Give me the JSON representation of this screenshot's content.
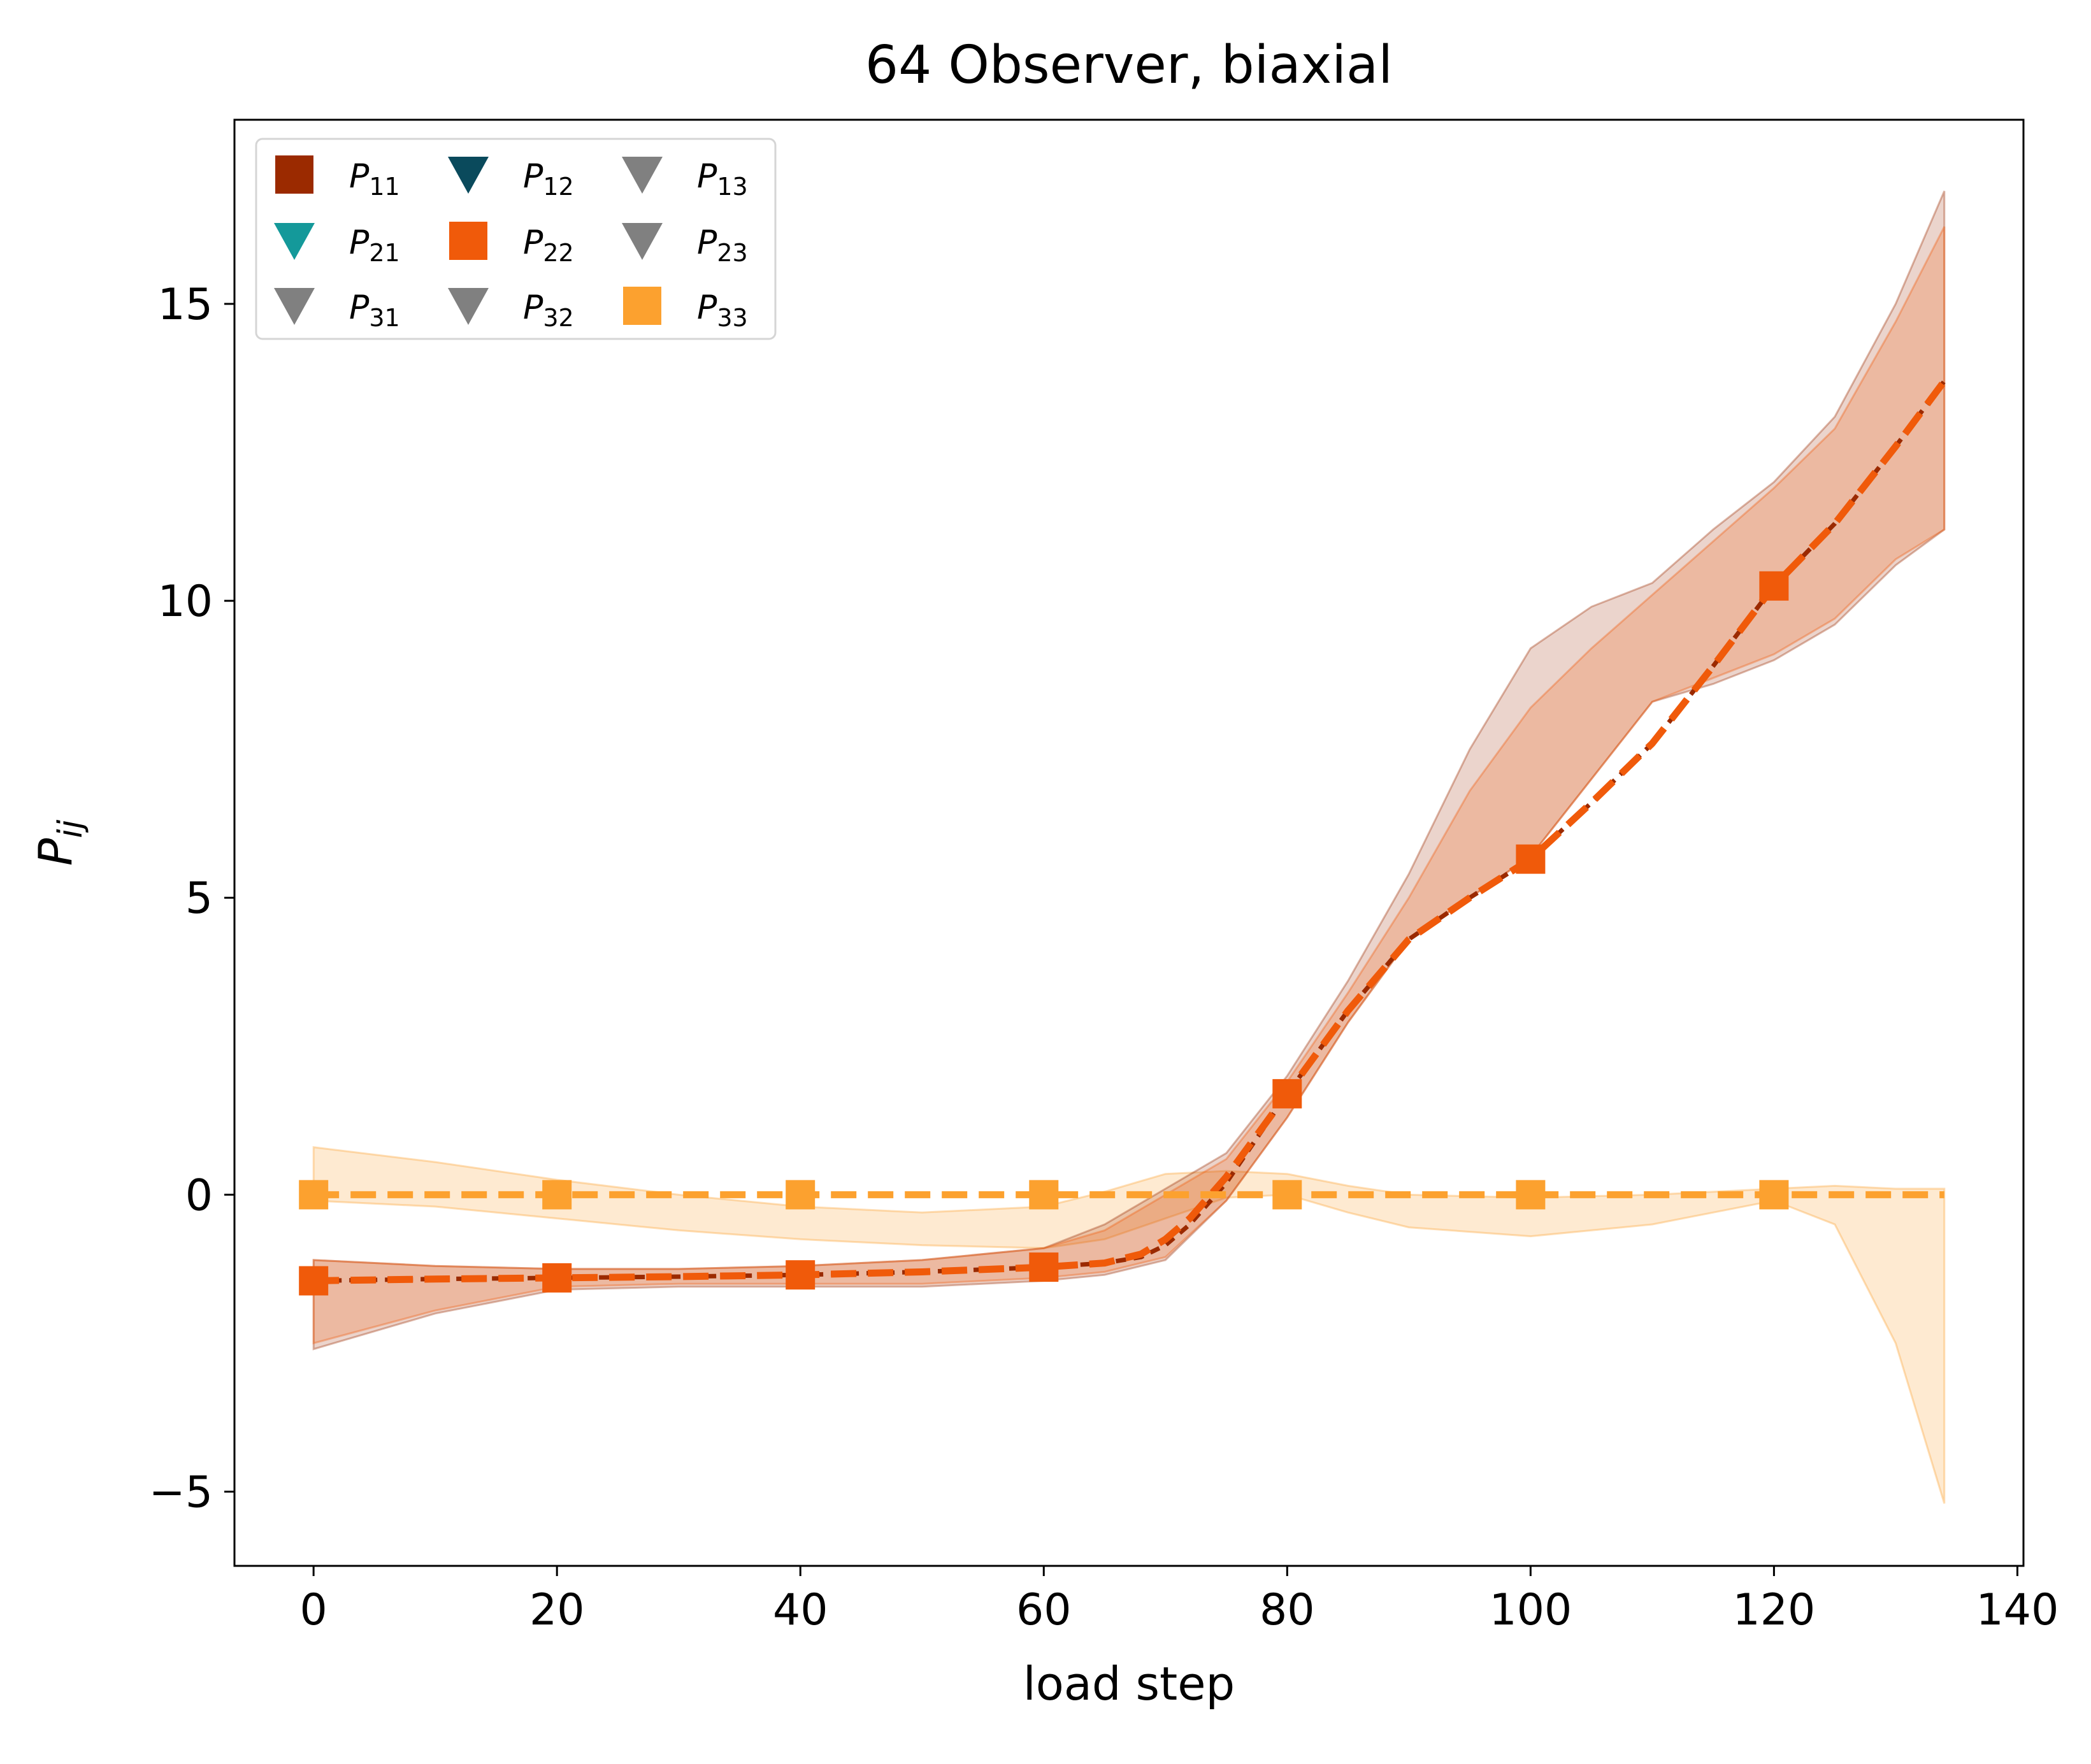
{
  "chart_data": {
    "type": "line",
    "title": "64 Observer, biaxial",
    "xlabel": "load step",
    "ylabel": "P",
    "ylabel_subscript": "ij",
    "xlim": [
      -6.5,
      140.5
    ],
    "ylim": [
      -6.25,
      18.1
    ],
    "x_ticks": [
      0,
      20,
      40,
      60,
      80,
      100,
      120,
      140
    ],
    "y_ticks": [
      -5,
      0,
      5,
      10,
      15
    ],
    "tick_labels": {
      "x": [
        "0",
        "20",
        "40",
        "60",
        "80",
        "100",
        "120",
        "140"
      ],
      "y": [
        "−5",
        "0",
        "5",
        "10",
        "15"
      ]
    },
    "grid": false,
    "legend_position": "top-left",
    "legend_columns": 3,
    "legend": [
      {
        "sym": "P",
        "sub": "11",
        "marker": "square",
        "color": "#9b2a00"
      },
      {
        "sym": "P",
        "sub": "21",
        "marker": "triangle-down",
        "color": "#14999a"
      },
      {
        "sym": "P",
        "sub": "31",
        "marker": "triangle-down",
        "color": "#808080"
      },
      {
        "sym": "P",
        "sub": "12",
        "marker": "triangle-down",
        "color": "#0a4a5c"
      },
      {
        "sym": "P",
        "sub": "22",
        "marker": "square",
        "color": "#f05a0a"
      },
      {
        "sym": "P",
        "sub": "32",
        "marker": "triangle-down",
        "color": "#808080"
      },
      {
        "sym": "P",
        "sub": "13",
        "marker": "triangle-down",
        "color": "#808080"
      },
      {
        "sym": "P",
        "sub": "23",
        "marker": "triangle-down",
        "color": "#808080"
      },
      {
        "sym": "P",
        "sub": "33",
        "marker": "square",
        "color": "#fca12f"
      }
    ],
    "bands": [
      {
        "name": "P33 band",
        "color": "#fca12f",
        "opacity": 0.22,
        "x": [
          0,
          10,
          20,
          30,
          40,
          50,
          60,
          65,
          70,
          75,
          80,
          85,
          90,
          100,
          110,
          115,
          120,
          125,
          130,
          134
        ],
        "upper": [
          0.8,
          0.55,
          0.25,
          0.0,
          -0.2,
          -0.3,
          -0.2,
          0.05,
          0.35,
          0.4,
          0.35,
          0.15,
          0.0,
          -0.05,
          0.0,
          0.05,
          0.1,
          0.15,
          0.1,
          0.1
        ],
        "lower": [
          -0.1,
          -0.2,
          -0.4,
          -0.6,
          -0.75,
          -0.85,
          -0.9,
          -0.75,
          -0.4,
          -0.05,
          0.0,
          -0.3,
          -0.55,
          -0.7,
          -0.5,
          -0.3,
          -0.1,
          -0.5,
          -2.5,
          -5.2
        ]
      },
      {
        "name": "P11 band",
        "color": "#9b2a00",
        "opacity": 0.2,
        "x": [
          0,
          10,
          20,
          30,
          40,
          50,
          60,
          65,
          70,
          75,
          80,
          85,
          90,
          95,
          100,
          105,
          110,
          115,
          120,
          125,
          130,
          134
        ],
        "upper": [
          -1.1,
          -1.2,
          -1.25,
          -1.25,
          -1.2,
          -1.1,
          -0.9,
          -0.5,
          0.1,
          0.7,
          2.0,
          3.6,
          5.4,
          7.5,
          9.2,
          9.9,
          10.3,
          11.2,
          12.0,
          13.1,
          15.0,
          16.9
        ],
        "lower": [
          -2.6,
          -2.0,
          -1.6,
          -1.55,
          -1.55,
          -1.55,
          -1.45,
          -1.35,
          -1.1,
          -0.1,
          1.3,
          2.9,
          4.3,
          5.0,
          5.7,
          7.0,
          8.3,
          8.6,
          9.0,
          9.6,
          10.6,
          11.2
        ]
      },
      {
        "name": "P22 band",
        "color": "#f05a0a",
        "opacity": 0.22,
        "x": [
          0,
          10,
          20,
          30,
          40,
          50,
          60,
          65,
          70,
          75,
          80,
          85,
          90,
          95,
          100,
          105,
          110,
          115,
          120,
          125,
          130,
          134
        ],
        "upper": [
          -1.1,
          -1.2,
          -1.25,
          -1.25,
          -1.2,
          -1.1,
          -0.9,
          -0.6,
          0.0,
          0.6,
          1.9,
          3.4,
          5.0,
          6.8,
          8.2,
          9.2,
          10.1,
          11.0,
          11.9,
          12.9,
          14.7,
          16.3
        ],
        "lower": [
          -2.5,
          -1.95,
          -1.55,
          -1.5,
          -1.5,
          -1.5,
          -1.4,
          -1.3,
          -1.05,
          -0.1,
          1.3,
          2.9,
          4.3,
          5.0,
          5.7,
          7.0,
          8.3,
          8.7,
          9.1,
          9.7,
          10.7,
          11.2
        ]
      }
    ],
    "series": [
      {
        "name": "P11",
        "color": "#9b2a00",
        "dash": "short",
        "width": 7,
        "x": [
          0,
          10,
          20,
          30,
          40,
          50,
          60,
          65,
          68,
          70,
          72,
          75,
          80,
          85,
          90,
          95,
          100,
          105,
          110,
          115,
          120,
          125,
          130,
          134
        ],
        "y": [
          -1.45,
          -1.42,
          -1.4,
          -1.38,
          -1.35,
          -1.3,
          -1.22,
          -1.15,
          -1.05,
          -0.85,
          -0.5,
          0.2,
          1.7,
          3.1,
          4.3,
          5.0,
          5.65,
          6.6,
          7.6,
          8.9,
          10.25,
          11.3,
          12.6,
          13.7
        ]
      },
      {
        "name": "P22",
        "color": "#f05a0a",
        "dash": "long",
        "width": 11,
        "x": [
          0,
          10,
          20,
          30,
          40,
          50,
          60,
          65,
          68,
          70,
          72,
          75,
          80,
          85,
          90,
          95,
          100,
          105,
          110,
          115,
          120,
          125,
          130,
          134
        ],
        "y": [
          -1.45,
          -1.42,
          -1.4,
          -1.38,
          -1.35,
          -1.3,
          -1.22,
          -1.15,
          -1.0,
          -0.75,
          -0.4,
          0.3,
          1.7,
          3.1,
          4.3,
          5.0,
          5.65,
          6.6,
          7.6,
          8.9,
          10.25,
          11.3,
          12.6,
          13.7
        ],
        "markers": {
          "x": [
            0,
            20,
            40,
            60,
            80,
            100,
            120
          ],
          "y": [
            -1.45,
            -1.4,
            -1.35,
            -1.22,
            1.7,
            5.65,
            10.25
          ],
          "shape": "square"
        }
      },
      {
        "name": "P33",
        "color": "#fca12f",
        "dash": "long",
        "width": 11,
        "x": [
          0,
          134
        ],
        "y": [
          0,
          0
        ],
        "markers": {
          "x": [
            0,
            20,
            40,
            60,
            80,
            100,
            120
          ],
          "y": [
            0,
            0,
            0,
            0,
            0,
            0,
            0
          ],
          "shape": "square"
        }
      }
    ]
  }
}
